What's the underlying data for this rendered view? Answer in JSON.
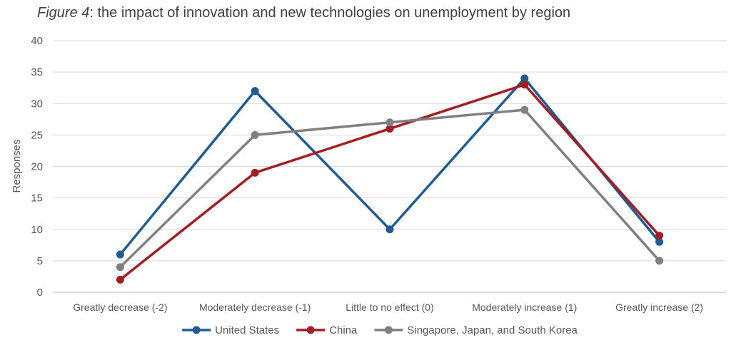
{
  "title": {
    "figure_label": "Figure 4",
    "rest": ": the impact of innovation and new technologies on unemployment by region"
  },
  "chart_data": {
    "type": "line",
    "title": "Figure 4: the impact of innovation and new technologies on unemployment by region",
    "xlabel": "",
    "ylabel": "Responses",
    "ylim": [
      0,
      40
    ],
    "yticks": [
      0,
      5,
      10,
      15,
      20,
      25,
      30,
      35,
      40
    ],
    "grid": true,
    "legend_position": "bottom",
    "categories": [
      "Greatly decrease (-2)",
      "Moderately decrease (-1)",
      "Little to no effect (0)",
      "Moderately increase (1)",
      "Greatly increase (2)"
    ],
    "series": [
      {
        "name": "United States",
        "color": "#1f5b94",
        "values": [
          6,
          32,
          10,
          34,
          8
        ]
      },
      {
        "name": "China",
        "color": "#a51c23",
        "values": [
          2,
          19,
          26,
          33,
          9
        ]
      },
      {
        "name": "Singapore, Japan, and South Korea",
        "color": "#808080",
        "values": [
          4,
          25,
          27,
          29,
          5
        ]
      }
    ]
  }
}
